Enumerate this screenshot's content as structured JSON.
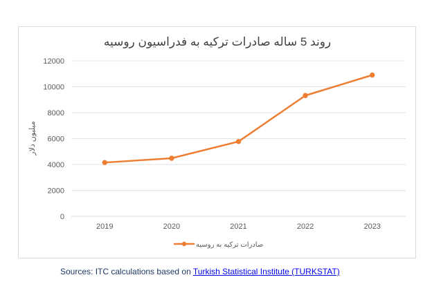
{
  "chart_data": {
    "type": "line",
    "title": "روند 5 ساله صادرات ترکیه به فدراسیون روسیه",
    "xlabel": "",
    "ylabel": "میلیون دلار",
    "categories": [
      "2019",
      "2020",
      "2021",
      "2022",
      "2023"
    ],
    "series": [
      {
        "name": "صادرات ترکیه به روسیه",
        "values": [
          4150,
          4480,
          5770,
          9320,
          10900
        ],
        "color": "#ed7d31"
      }
    ],
    "ylim": [
      0,
      12000
    ],
    "yticks": [
      0,
      2000,
      4000,
      6000,
      8000,
      10000,
      12000
    ],
    "grid": true,
    "legend_position": "bottom"
  },
  "source": {
    "prefix": "Sources: ITC calculations based on ",
    "link_text": "Turkish Statistical Institute (TURKSTAT)"
  }
}
